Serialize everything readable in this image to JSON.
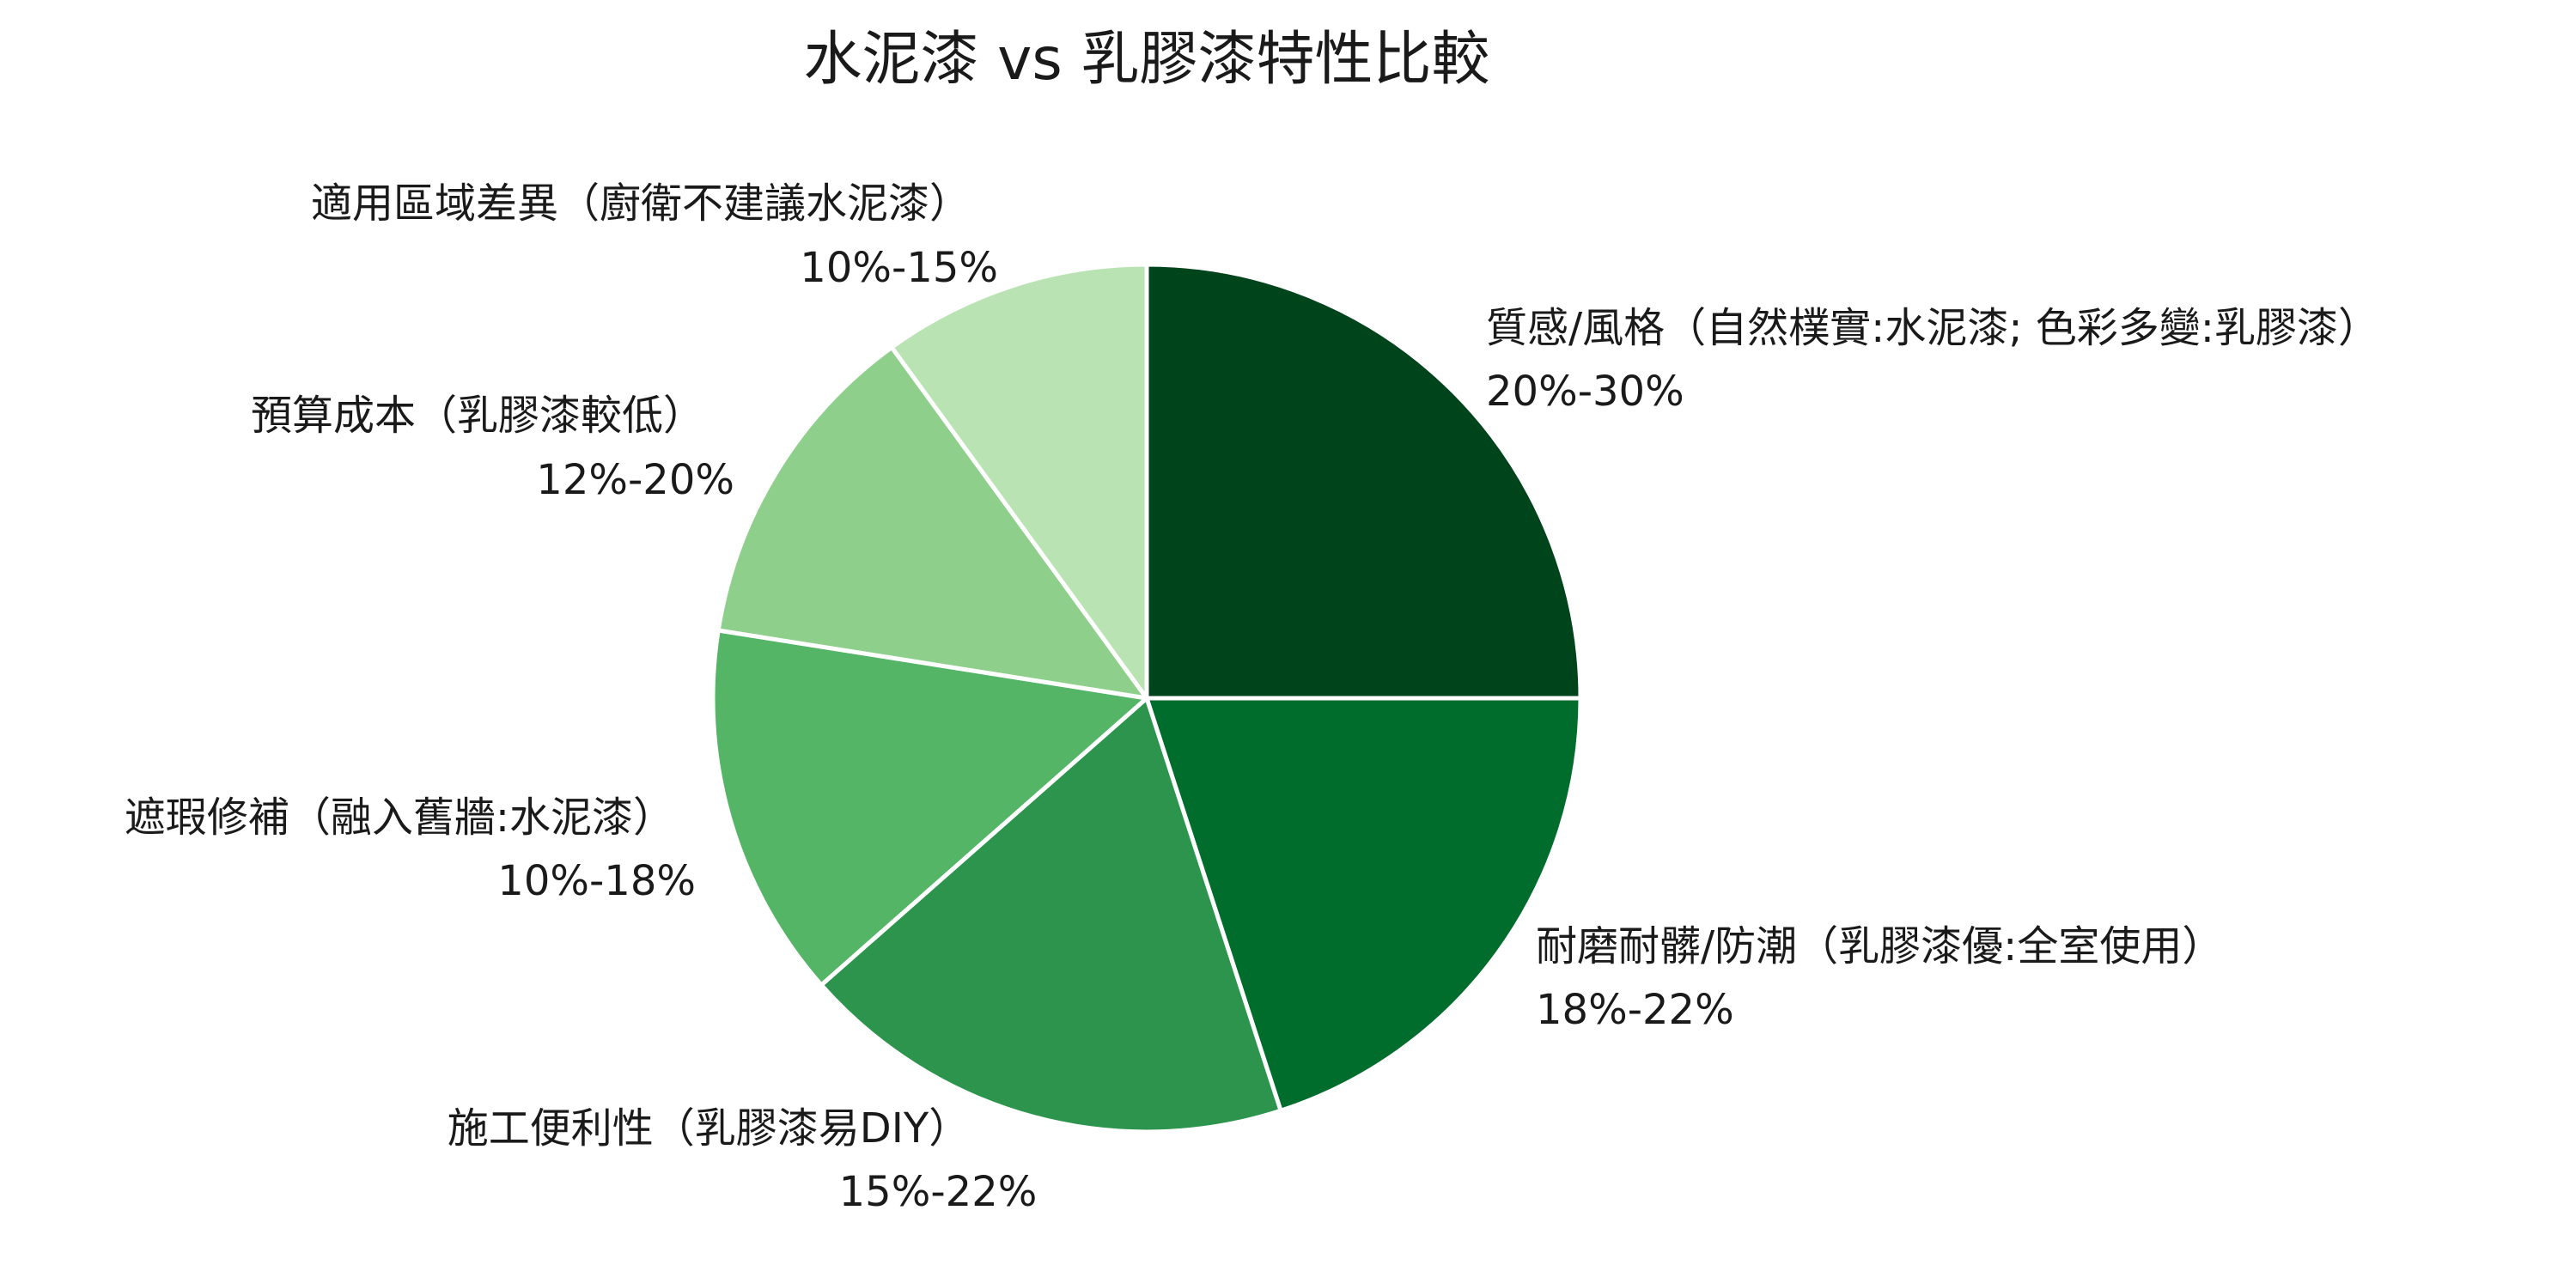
{
  "chart_data": {
    "type": "pie",
    "title": "水泥漆 vs 乳膠漆特性比較",
    "start": "12 o'clock",
    "direction": "clockwise",
    "slices": [
      {
        "label": "質感/風格（自然樸實:水泥漆; 色彩多變:乳膠漆）",
        "value_label": "20%-30%",
        "value": 25,
        "color": "#00441b"
      },
      {
        "label": "耐磨耐髒/防潮（乳膠漆優:全室使用）",
        "value_label": "18%-22%",
        "value": 20,
        "color": "#006d2c"
      },
      {
        "label": "施工便利性（乳膠漆易DIY）",
        "value_label": "15%-22%",
        "value": 18.5,
        "color": "#2c944c"
      },
      {
        "label": "遮瑕修補（融入舊牆:水泥漆）",
        "value_label": "10%-18%",
        "value": 14,
        "color": "#54b567"
      },
      {
        "label": "預算成本（乳膠漆較低）",
        "value_label": "12%-20%",
        "value": 12.5,
        "color": "#8ed08b"
      },
      {
        "label": "適用區域差異（廚衛不建議水泥漆）",
        "value_label": "10%-15%",
        "value": 10,
        "color": "#b9e3b3"
      }
    ]
  }
}
